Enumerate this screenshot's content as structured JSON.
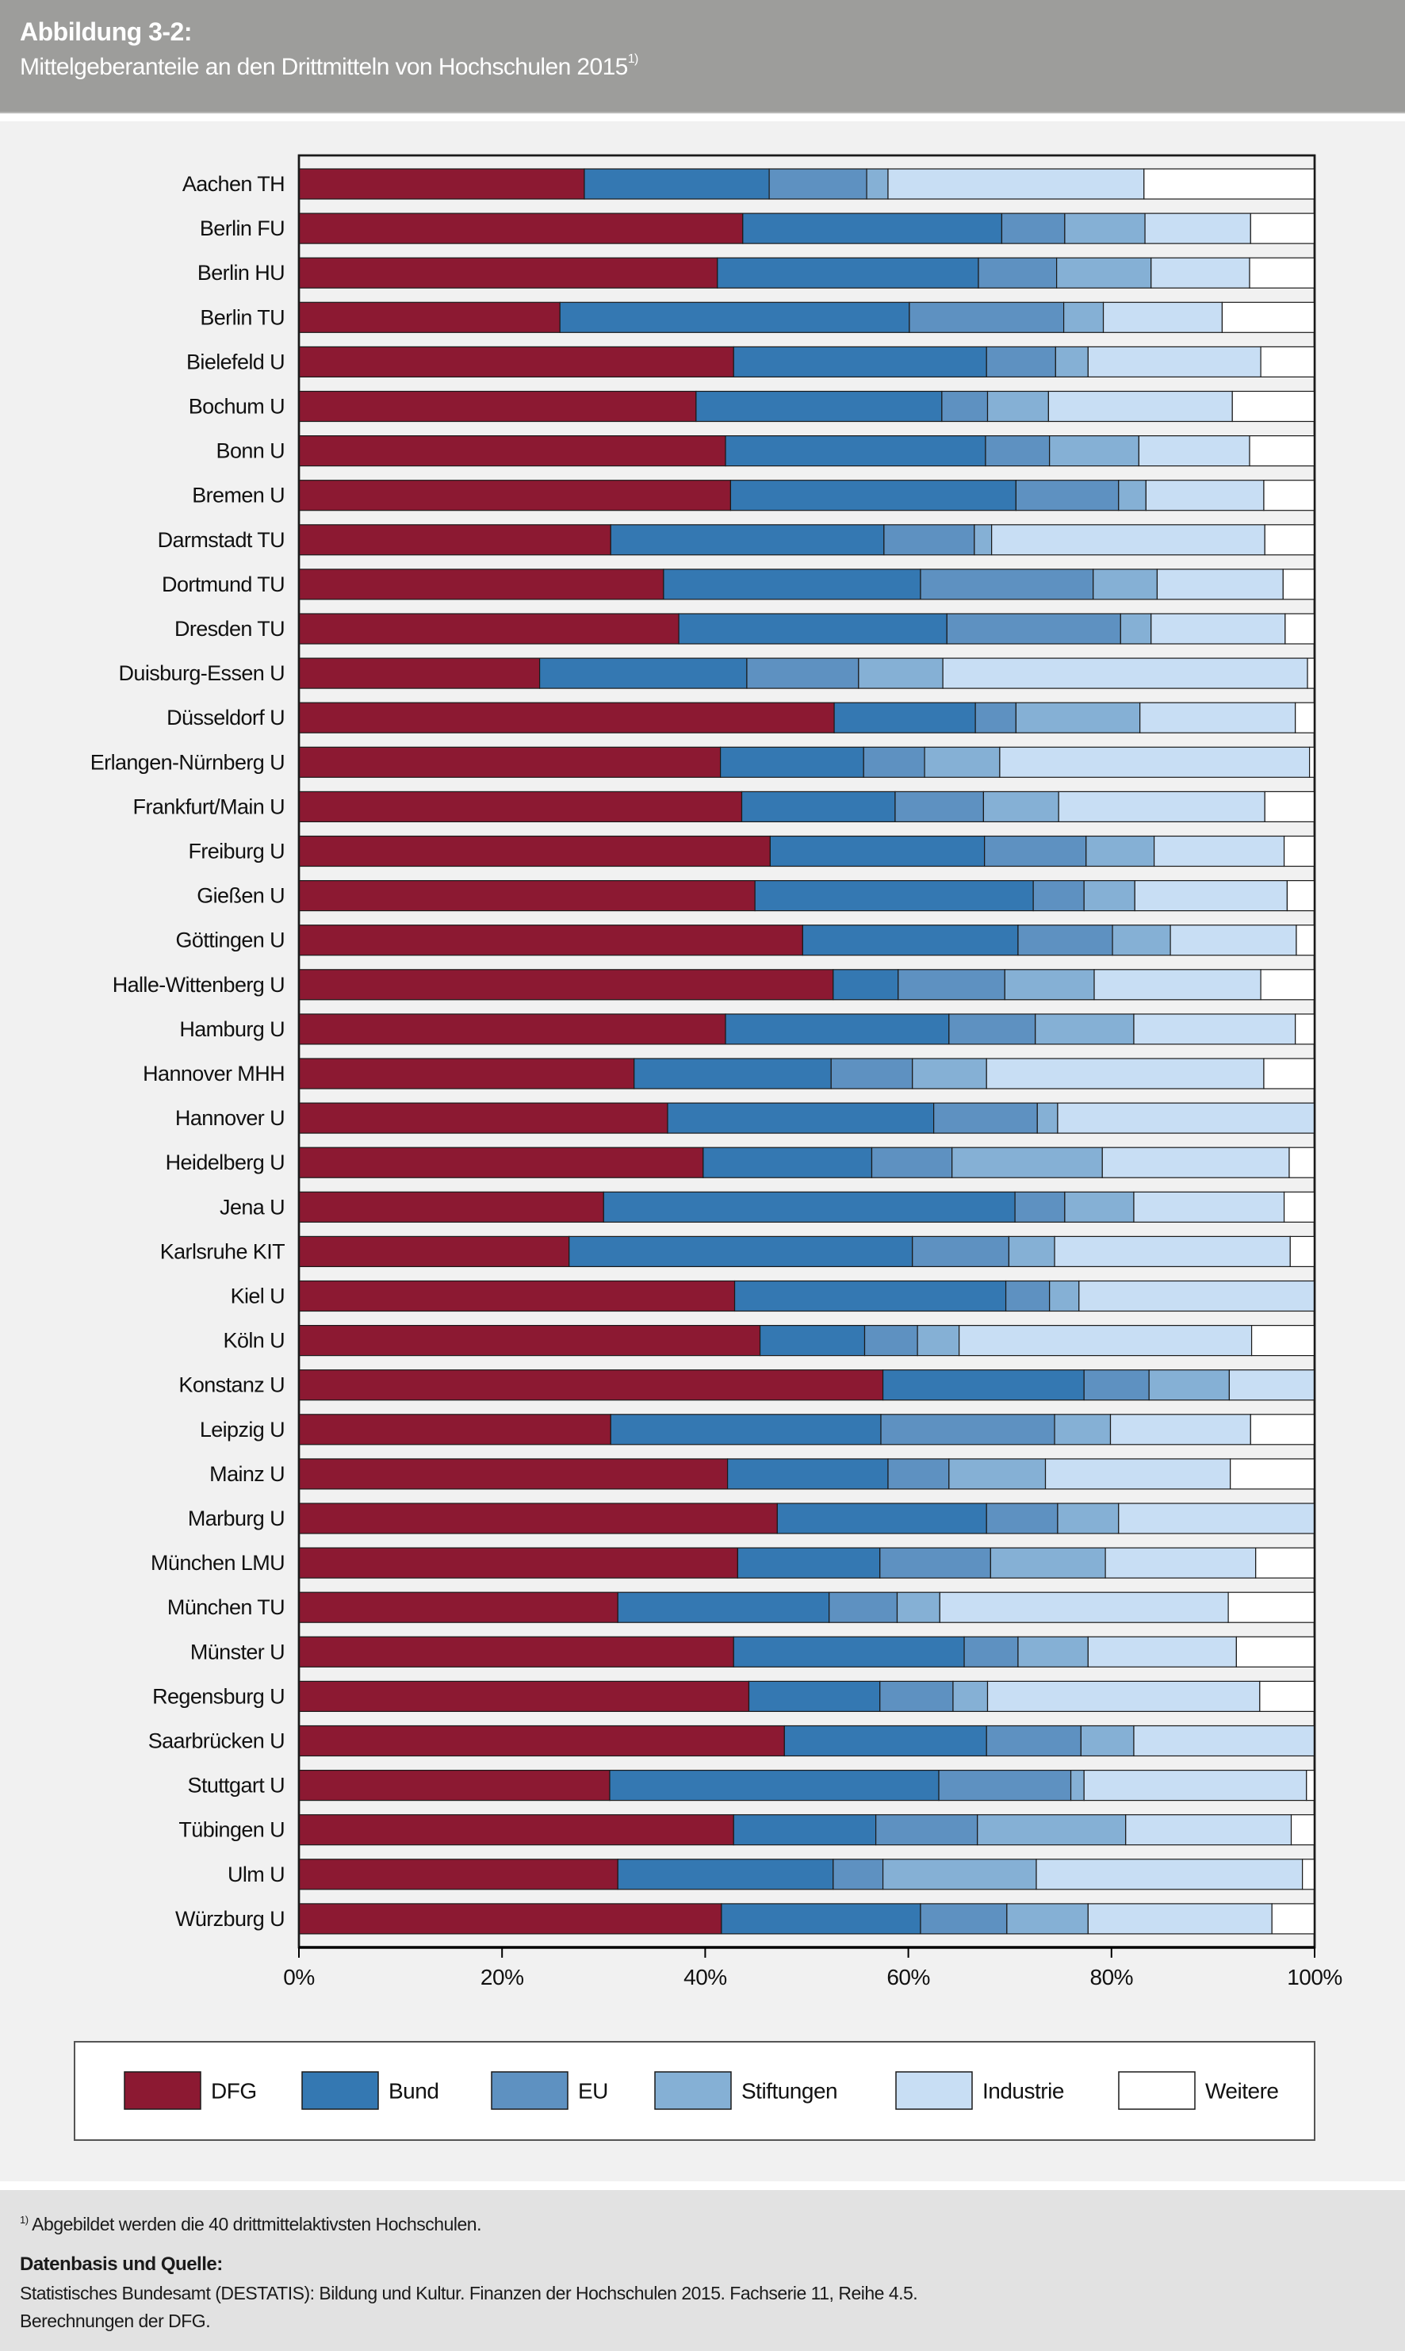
{
  "header": {
    "title": "Abbildung 3-2:",
    "subtitle": "Mittelgeberanteile an den Drittmitteln von Hochschulen 2015",
    "subtitle_footnote_marker": "1)"
  },
  "footer": {
    "footnote_marker": "1)",
    "footnote": " Abgebildet werden die 40 drittmittelaktivsten Hochschulen.",
    "source_heading": "Datenbasis und Quelle:",
    "source_line1": "Statistisches Bundesamt (DESTATIS): Bildung und Kultur. Finanzen der Hochschulen 2015. Fachserie 11, Reihe 4.5.",
    "source_line2": "Berechnungen der DFG."
  },
  "chart_data": {
    "type": "bar",
    "orientation": "horizontal",
    "stacked": "percent",
    "title": "Mittelgeberanteile an den Drittmitteln von Hochschulen 2015",
    "xlabel": "",
    "ylabel": "",
    "xlim": [
      0,
      100
    ],
    "x_ticks": [
      "0%",
      "20%",
      "40%",
      "60%",
      "80%",
      "100%"
    ],
    "x_tick_values": [
      0,
      20,
      40,
      60,
      80,
      100
    ],
    "grid": false,
    "legend_position": "bottom",
    "categories": [
      "Aachen TH",
      "Berlin FU",
      "Berlin HU",
      "Berlin TU",
      "Bielefeld U",
      "Bochum U",
      "Bonn U",
      "Bremen U",
      "Darmstadt TU",
      "Dortmund TU",
      "Dresden TU",
      "Duisburg-Essen U",
      "Düsseldorf U",
      "Erlangen-Nürnberg U",
      "Frankfurt/Main U",
      "Freiburg U",
      "Gießen U",
      "Göttingen U",
      "Halle-Wittenberg U",
      "Hamburg U",
      "Hannover MHH",
      "Hannover U",
      "Heidelberg U",
      "Jena U",
      "Karlsruhe KIT",
      "Kiel U",
      "Köln U",
      "Konstanz U",
      "Leipzig U",
      "Mainz U",
      "Marburg U",
      "München LMU",
      "München TU",
      "Münster U",
      "Regensburg U",
      "Saarbrücken U",
      "Stuttgart U",
      "Tübingen U",
      "Ulm U",
      "Würzburg U"
    ],
    "series": [
      {
        "name": "DFG",
        "color": "#8c1932",
        "values": [
          28.1,
          43.7,
          41.2,
          25.7,
          42.8,
          39.1,
          42.0,
          42.5,
          30.7,
          35.9,
          37.4,
          23.7,
          52.7,
          41.5,
          43.6,
          46.4,
          44.9,
          49.6,
          52.6,
          42.0,
          33.0,
          36.3,
          39.8,
          30.0,
          26.6,
          42.9,
          45.4,
          57.5,
          30.7,
          42.2,
          47.1,
          43.2,
          31.4,
          42.8,
          44.3,
          47.8,
          30.6,
          42.8,
          31.4,
          41.6
        ]
      },
      {
        "name": "Bund",
        "color": "#3478b2",
        "values": [
          18.2,
          25.5,
          25.7,
          34.4,
          24.9,
          24.2,
          25.6,
          28.1,
          26.9,
          25.3,
          26.4,
          20.4,
          13.9,
          14.1,
          15.1,
          21.1,
          27.4,
          21.2,
          6.4,
          22.0,
          19.4,
          26.2,
          16.6,
          40.5,
          33.8,
          26.7,
          10.3,
          19.8,
          26.6,
          15.8,
          20.6,
          14.0,
          20.8,
          22.7,
          12.9,
          19.9,
          32.4,
          14.0,
          21.2,
          19.6
        ]
      },
      {
        "name": "EU",
        "color": "#5e91c1",
        "values": [
          9.6,
          6.2,
          7.7,
          15.2,
          6.8,
          4.5,
          6.3,
          10.1,
          8.9,
          17.0,
          17.1,
          11.0,
          4.0,
          6.0,
          8.7,
          10.0,
          5.0,
          9.3,
          10.5,
          8.5,
          8.0,
          10.2,
          7.9,
          4.9,
          9.5,
          4.3,
          5.2,
          6.4,
          17.1,
          6.0,
          7.0,
          10.9,
          6.7,
          5.3,
          7.2,
          9.3,
          13.0,
          10.0,
          4.9,
          8.5
        ]
      },
      {
        "name": "Stiftungen",
        "color": "#85b0d5",
        "values": [
          2.1,
          7.9,
          9.3,
          3.9,
          3.2,
          6.0,
          8.8,
          2.7,
          1.7,
          6.3,
          3.0,
          8.3,
          12.2,
          7.4,
          7.4,
          6.7,
          5.0,
          5.7,
          8.8,
          9.7,
          7.3,
          2.0,
          14.8,
          6.8,
          4.5,
          2.9,
          4.1,
          7.9,
          5.5,
          9.5,
          6.0,
          11.3,
          4.2,
          6.9,
          3.4,
          5.2,
          1.3,
          14.6,
          15.1,
          8.0
        ]
      },
      {
        "name": "Industrie",
        "color": "#c8def4",
        "values": [
          25.2,
          10.4,
          9.7,
          11.7,
          17.0,
          18.1,
          10.9,
          11.6,
          26.9,
          12.4,
          13.2,
          35.9,
          15.3,
          30.5,
          20.3,
          12.8,
          15.0,
          12.4,
          16.4,
          15.9,
          27.3,
          25.3,
          18.4,
          14.8,
          23.2,
          23.2,
          28.8,
          8.4,
          13.8,
          18.2,
          19.3,
          14.8,
          28.4,
          14.6,
          26.8,
          17.8,
          21.9,
          16.3,
          26.2,
          18.1
        ]
      },
      {
        "name": "Weitere",
        "color": "#ffffff",
        "values": [
          16.8,
          6.3,
          6.4,
          9.1,
          5.3,
          8.1,
          6.4,
          5.0,
          4.9,
          3.1,
          2.9,
          0.7,
          1.9,
          0.5,
          4.9,
          3.0,
          2.7,
          1.8,
          5.3,
          1.9,
          5.0,
          0.0,
          2.5,
          3.0,
          2.4,
          0.0,
          6.2,
          0.0,
          6.3,
          8.3,
          0.0,
          5.8,
          8.5,
          7.7,
          5.4,
          0.0,
          0.8,
          2.3,
          1.2,
          4.2
        ]
      }
    ]
  }
}
